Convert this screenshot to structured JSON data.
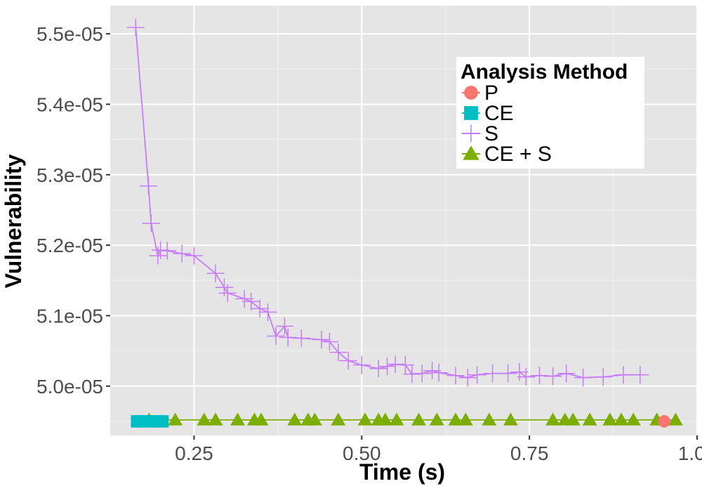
{
  "chart_data": {
    "type": "scatter",
    "xlabel": "Time (s)",
    "ylabel": "Vulnerability",
    "xlim": [
      0.125,
      1.0
    ],
    "ylim": [
      4.93e-05,
      5.54e-05
    ],
    "x_ticks": [
      0.25,
      0.5,
      0.75,
      1.0
    ],
    "x_tick_labels": [
      "0.25",
      "0.50",
      "0.75",
      "1.00"
    ],
    "y_ticks": [
      5e-05,
      5.1e-05,
      5.2e-05,
      5.3e-05,
      5.4e-05,
      5.5e-05
    ],
    "y_tick_labels": [
      "5.0e-05",
      "5.1e-05",
      "5.2e-05",
      "5.3e-05",
      "5.4e-05",
      "5.5e-05"
    ],
    "grid": true,
    "legend": {
      "title": "Analysis Method",
      "position": "top-right"
    },
    "series": [
      {
        "name": "P",
        "marker": "circle",
        "color": "#F8766D",
        "points": [
          [
            0.951,
            4.95e-05
          ]
        ]
      },
      {
        "name": "CE",
        "marker": "square",
        "color": "#00BFC4",
        "points": [
          [
            0.165,
            4.95e-05
          ],
          [
            0.172,
            4.95e-05
          ],
          [
            0.18,
            4.95e-05
          ],
          [
            0.188,
            4.95e-05
          ],
          [
            0.196,
            4.95e-05
          ],
          [
            0.203,
            4.95e-05
          ]
        ]
      },
      {
        "name": "S",
        "marker": "cross",
        "color": "#C77CFF",
        "points": [
          [
            0.163,
            5.509e-05
          ],
          [
            0.182,
            5.284e-05
          ],
          [
            0.186,
            5.231e-05
          ],
          [
            0.196,
            5.185e-05
          ],
          [
            0.2,
            5.193e-05
          ],
          [
            0.21,
            5.192e-05
          ],
          [
            0.232,
            5.188e-05
          ],
          [
            0.25,
            5.185e-05
          ],
          [
            0.282,
            5.16e-05
          ],
          [
            0.295,
            5.14e-05
          ],
          [
            0.3,
            5.132e-05
          ],
          [
            0.325,
            5.124e-05
          ],
          [
            0.335,
            5.12e-05
          ],
          [
            0.348,
            5.11e-05
          ],
          [
            0.36,
            5.105e-05
          ],
          [
            0.372,
            5.071e-05
          ],
          [
            0.385,
            5.085e-05
          ],
          [
            0.39,
            5.069e-05
          ],
          [
            0.41,
            5.068e-05
          ],
          [
            0.44,
            5.066e-05
          ],
          [
            0.452,
            5.063e-05
          ],
          [
            0.465,
            5.048e-05
          ],
          [
            0.48,
            5.036e-05
          ],
          [
            0.5,
            5.03e-05
          ],
          [
            0.525,
            5.025e-05
          ],
          [
            0.538,
            5.028e-05
          ],
          [
            0.55,
            5.031e-05
          ],
          [
            0.565,
            5.03e-05
          ],
          [
            0.575,
            5.017e-05
          ],
          [
            0.59,
            5.018e-05
          ],
          [
            0.605,
            5.022e-05
          ],
          [
            0.615,
            5.019e-05
          ],
          [
            0.64,
            5.015e-05
          ],
          [
            0.658,
            5.012e-05
          ],
          [
            0.672,
            5.016e-05
          ],
          [
            0.695,
            5.018e-05
          ],
          [
            0.718,
            5.018e-05
          ],
          [
            0.735,
            5.02e-05
          ],
          [
            0.745,
            5.013e-05
          ],
          [
            0.765,
            5.015e-05
          ],
          [
            0.785,
            5.014e-05
          ],
          [
            0.805,
            5.018e-05
          ],
          [
            0.83,
            5.012e-05
          ],
          [
            0.86,
            5.013e-05
          ],
          [
            0.89,
            5.016e-05
          ],
          [
            0.915,
            5.016e-05
          ]
        ]
      },
      {
        "name": "CE + S",
        "marker": "triangle",
        "color": "#7CAE00",
        "points": [
          [
            0.183,
            4.952e-05
          ],
          [
            0.222,
            4.952e-05
          ],
          [
            0.265,
            4.952e-05
          ],
          [
            0.282,
            4.952e-05
          ],
          [
            0.315,
            4.952e-05
          ],
          [
            0.34,
            4.952e-05
          ],
          [
            0.35,
            4.952e-05
          ],
          [
            0.4,
            4.952e-05
          ],
          [
            0.42,
            4.952e-05
          ],
          [
            0.43,
            4.952e-05
          ],
          [
            0.465,
            4.952e-05
          ],
          [
            0.505,
            4.952e-05
          ],
          [
            0.525,
            4.952e-05
          ],
          [
            0.535,
            4.952e-05
          ],
          [
            0.552,
            4.952e-05
          ],
          [
            0.585,
            4.952e-05
          ],
          [
            0.612,
            4.952e-05
          ],
          [
            0.64,
            4.952e-05
          ],
          [
            0.655,
            4.952e-05
          ],
          [
            0.69,
            4.952e-05
          ],
          [
            0.722,
            4.952e-05
          ],
          [
            0.785,
            4.952e-05
          ],
          [
            0.803,
            4.952e-05
          ],
          [
            0.815,
            4.952e-05
          ],
          [
            0.84,
            4.952e-05
          ],
          [
            0.87,
            4.952e-05
          ],
          [
            0.887,
            4.952e-05
          ],
          [
            0.905,
            4.952e-05
          ],
          [
            0.94,
            4.952e-05
          ],
          [
            0.968,
            4.952e-05
          ]
        ]
      }
    ]
  }
}
